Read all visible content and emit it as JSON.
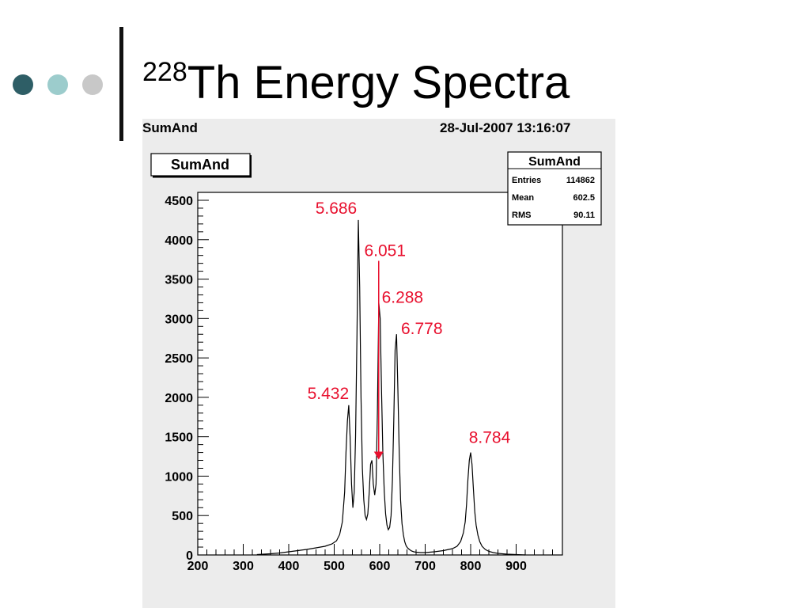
{
  "slide": {
    "title_superscript": "228",
    "title_text": "Th Energy Spectra",
    "bullet_colors": [
      "#2e5e66",
      "#9ccccc",
      "#c8c8c8"
    ]
  },
  "canvas": {
    "name": "SumAnd",
    "timestamp": "28-Jul-2007 13:16:07"
  },
  "stats_box": {
    "title": "SumAnd",
    "rows": [
      {
        "label": "Entries",
        "value": "114862"
      },
      {
        "label": "Mean",
        "value": "602.5"
      },
      {
        "label": "RMS",
        "value": "90.11"
      }
    ]
  },
  "colors": {
    "annotation": "#e8102e",
    "histogram": "#000000",
    "frame_background": "#ececec"
  },
  "chart_data": {
    "type": "line",
    "title": "SumAnd",
    "xlabel": "",
    "ylabel": "",
    "xlim": [
      200,
      1000
    ],
    "ylim": [
      0,
      4500
    ],
    "x_ticks": [
      200,
      300,
      400,
      500,
      600,
      700,
      800,
      900
    ],
    "y_ticks": [
      0,
      500,
      1000,
      1500,
      2000,
      2500,
      3000,
      3500,
      4000,
      4500
    ],
    "grid": false,
    "legend": "none",
    "series": [
      {
        "x": [
          330,
          360,
          380,
          400,
          420,
          440,
          460,
          480,
          495,
          505,
          512,
          518,
          523,
          526,
          529,
          532,
          535,
          538,
          541,
          544,
          547,
          550,
          553,
          556,
          559,
          562,
          565,
          568,
          571,
          574,
          577,
          580,
          583,
          586,
          589,
          592,
          595,
          598,
          601,
          604,
          607,
          610,
          613,
          616,
          619,
          622,
          625,
          628,
          631,
          634,
          637,
          640,
          643,
          646,
          649,
          652,
          655,
          658,
          661,
          665,
          670,
          675,
          680,
          690,
          700,
          720,
          740,
          760,
          770,
          778,
          784,
          788,
          791,
          794,
          797,
          800,
          803,
          806,
          809,
          812,
          816,
          820,
          825,
          832,
          840,
          850,
          860,
          880,
          900,
          920
        ],
        "y": [
          5,
          15,
          25,
          40,
          55,
          70,
          90,
          110,
          140,
          180,
          260,
          420,
          800,
          1300,
          1700,
          1900,
          1500,
          900,
          600,
          800,
          1500,
          2800,
          4250,
          3400,
          2000,
          1100,
          700,
          500,
          450,
          520,
          800,
          1150,
          1200,
          900,
          760,
          900,
          1800,
          3200,
          3000,
          2100,
          1300,
          800,
          520,
          380,
          320,
          350,
          500,
          950,
          1700,
          2600,
          2800,
          2100,
          1300,
          700,
          400,
          260,
          170,
          120,
          90,
          70,
          50,
          40,
          35,
          30,
          30,
          40,
          55,
          80,
          110,
          170,
          280,
          420,
          640,
          950,
          1200,
          1300,
          1150,
          850,
          550,
          380,
          250,
          170,
          110,
          70,
          45,
          30,
          20,
          10,
          5,
          0
        ]
      }
    ],
    "annotations": [
      {
        "label": "5.686",
        "x": 553,
        "y": 4250
      },
      {
        "label": "6.051",
        "x": 577,
        "y": 1200,
        "arrow": true
      },
      {
        "label": "6.288",
        "x": 598,
        "y": 3200
      },
      {
        "label": "6.778",
        "x": 637,
        "y": 2800
      },
      {
        "label": "5.432",
        "x": 532,
        "y": 1900
      },
      {
        "label": "8.784",
        "x": 800,
        "y": 1300
      }
    ]
  }
}
